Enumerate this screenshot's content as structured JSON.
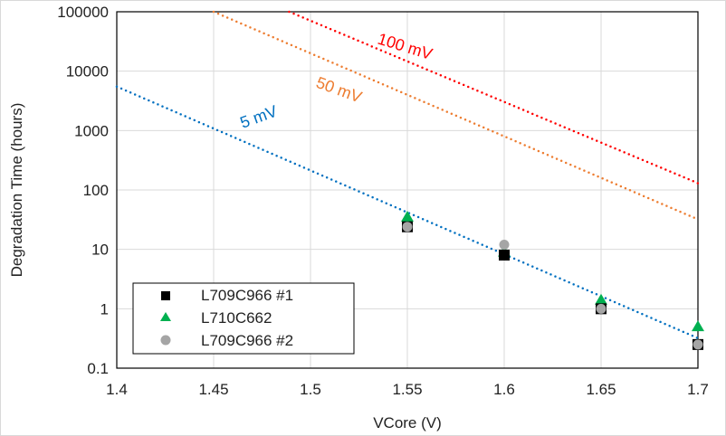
{
  "chart_data": {
    "type": "scatter",
    "title": "",
    "xlabel": "VCore (V)",
    "ylabel": "Degradation Time (hours)",
    "xlim": [
      1.4,
      1.7
    ],
    "ylim": [
      0.1,
      100000
    ],
    "yscale": "log",
    "grid": true,
    "xticks": [
      "1.4",
      "1.45",
      "1.5",
      "1.55",
      "1.6",
      "1.65",
      "1.7"
    ],
    "yticks": [
      "0.1",
      "1",
      "10",
      "100",
      "1000",
      "10000",
      "100000"
    ],
    "legend_position": "bottom-left",
    "series": [
      {
        "name": "L709C966 #1",
        "marker": "square",
        "color": "#000000",
        "x": [
          1.55,
          1.6,
          1.65,
          1.7
        ],
        "y": [
          24,
          8,
          1.0,
          0.25
        ]
      },
      {
        "name": "L710C662",
        "marker": "triangle",
        "color": "#00b050",
        "x": [
          1.55,
          1.6,
          1.65,
          1.7
        ],
        "y": [
          35,
          9,
          1.4,
          0.5
        ]
      },
      {
        "name": "L709C966 #2",
        "marker": "circle",
        "color": "#a5a5a5",
        "x": [
          1.55,
          1.6,
          1.65,
          1.7
        ],
        "y": [
          24,
          12,
          1.0,
          0.25
        ]
      }
    ],
    "trendlines": [
      {
        "label": "5 mV",
        "color": "#0070c0",
        "x": [
          1.4,
          1.7
        ],
        "y": [
          5500,
          0.32
        ]
      },
      {
        "label": "50 mV",
        "color": "#ed7d31",
        "x": [
          1.45,
          1.7
        ],
        "y": [
          100000,
          32
        ]
      },
      {
        "label": "100 mV",
        "color": "#ff0000",
        "x": [
          1.489,
          1.7
        ],
        "y": [
          100000,
          130
        ]
      }
    ]
  }
}
